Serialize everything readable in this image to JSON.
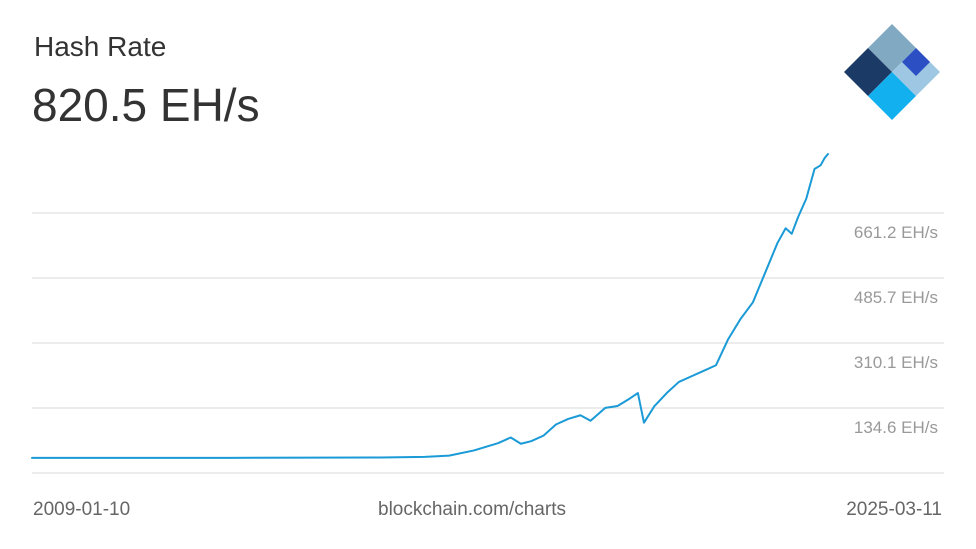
{
  "header": {
    "title": "Hash Rate",
    "value": "820.5 EH/s"
  },
  "footer": {
    "start_date": "2009-01-10",
    "source": "blockchain.com/charts",
    "end_date": "2025-03-11"
  },
  "colors": {
    "line": "#1a9ad6",
    "grid": "#d8d8d8",
    "tick_text": "#999999",
    "title_text": "#333333",
    "logo_dark_navy": "#1b3b66",
    "logo_light_blue": "#82a9c2",
    "logo_royal_blue": "#2c50c4",
    "logo_sky_blue": "#12b0ee",
    "logo_pale_blue": "#9dc7e3"
  },
  "logo": {
    "icon": "blockchain-logo-icon"
  },
  "chart_data": {
    "type": "line",
    "title": "Hash Rate",
    "xlabel": "",
    "ylabel": "",
    "x_start": "2009-01-10",
    "x_end": "2025-03-11",
    "y_ticks": [
      134.6,
      310.1,
      485.7,
      661.2
    ],
    "y_tick_labels": [
      "134.6 EH/s",
      "310.1 EH/s",
      "485.7 EH/s",
      "661.2 EH/s"
    ],
    "ylim": [
      -41.0,
      836.7
    ],
    "grid": true,
    "series": [
      {
        "values": [
          {
            "x": "2009-01-10",
            "y": 0
          },
          {
            "x": "2013-01-01",
            "y": 0
          },
          {
            "x": "2016-01-01",
            "y": 0.8
          },
          {
            "x": "2017-01-01",
            "y": 2.5
          },
          {
            "x": "2017-07-01",
            "y": 6
          },
          {
            "x": "2018-01-01",
            "y": 20
          },
          {
            "x": "2018-07-01",
            "y": 40
          },
          {
            "x": "2018-10-01",
            "y": 55
          },
          {
            "x": "2018-12-15",
            "y": 38
          },
          {
            "x": "2019-03-01",
            "y": 45
          },
          {
            "x": "2019-06-01",
            "y": 60
          },
          {
            "x": "2019-09-01",
            "y": 90
          },
          {
            "x": "2019-12-01",
            "y": 105
          },
          {
            "x": "2020-03-01",
            "y": 115
          },
          {
            "x": "2020-05-15",
            "y": 100
          },
          {
            "x": "2020-09-01",
            "y": 135
          },
          {
            "x": "2020-12-01",
            "y": 140
          },
          {
            "x": "2021-03-01",
            "y": 160
          },
          {
            "x": "2021-05-01",
            "y": 175
          },
          {
            "x": "2021-06-15",
            "y": 95
          },
          {
            "x": "2021-09-01",
            "y": 140
          },
          {
            "x": "2021-12-01",
            "y": 175
          },
          {
            "x": "2022-03-01",
            "y": 205
          },
          {
            "x": "2022-06-01",
            "y": 220
          },
          {
            "x": "2022-09-01",
            "y": 235
          },
          {
            "x": "2022-12-01",
            "y": 250
          },
          {
            "x": "2023-03-01",
            "y": 320
          },
          {
            "x": "2023-06-01",
            "y": 375
          },
          {
            "x": "2023-09-01",
            "y": 420
          },
          {
            "x": "2023-12-01",
            "y": 500
          },
          {
            "x": "2024-03-01",
            "y": 580
          },
          {
            "x": "2024-05-01",
            "y": 620
          },
          {
            "x": "2024-06-15",
            "y": 605
          },
          {
            "x": "2024-08-01",
            "y": 650
          },
          {
            "x": "2024-10-01",
            "y": 700
          },
          {
            "x": "2024-12-01",
            "y": 780
          },
          {
            "x": "2025-01-15",
            "y": 790
          },
          {
            "x": "2025-02-15",
            "y": 810
          },
          {
            "x": "2025-03-11",
            "y": 820.5
          }
        ]
      }
    ]
  }
}
